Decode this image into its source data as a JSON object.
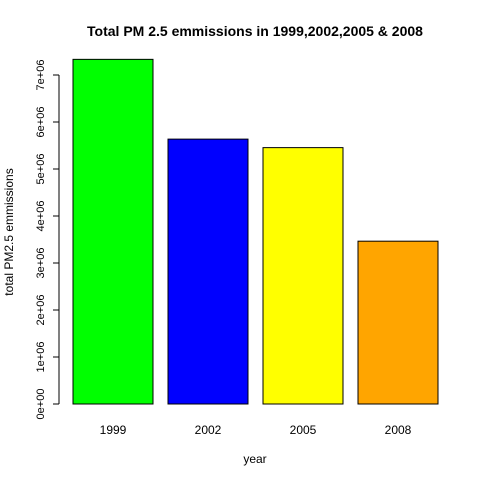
{
  "chart_data": {
    "type": "bar",
    "title": "Total PM 2.5 emmissions in 1999,2002,2005 & 2008",
    "xlabel": "year",
    "ylabel": "total PM2.5 emmissions",
    "categories": [
      "1999",
      "2002",
      "2005",
      "2008"
    ],
    "values": [
      7332967,
      5635780,
      5454703,
      3464206
    ],
    "colors": [
      "#00ff00",
      "#0000ff",
      "#ffff00",
      "#ffa500"
    ],
    "ylim": [
      0,
      7500000
    ],
    "yticks": [
      0,
      1000000,
      2000000,
      3000000,
      4000000,
      5000000,
      6000000,
      7000000
    ],
    "ytick_labels": [
      "0e+00",
      "1e+06",
      "2e+06",
      "3e+06",
      "4e+06",
      "5e+06",
      "6e+06",
      "7e+06"
    ],
    "grid": false,
    "legend": "none"
  }
}
